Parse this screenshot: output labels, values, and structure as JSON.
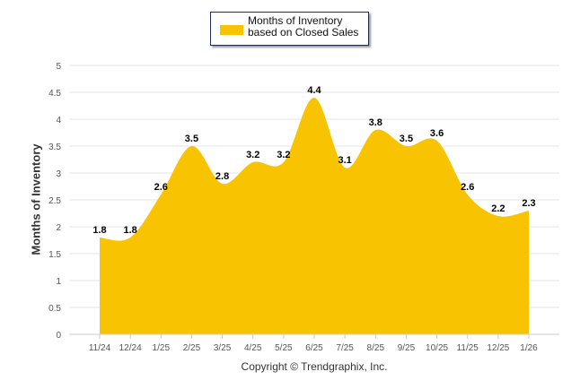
{
  "chart_data": {
    "type": "area",
    "title": "",
    "legend": {
      "label": "Months of Inventory based on Closed Sales",
      "position": "top-center"
    },
    "xlabel": "",
    "ylabel": "Months of Inventory",
    "ylim": [
      0,
      5
    ],
    "yticks": [
      "0",
      "0.5",
      "1",
      "1.5",
      "2",
      "2.5",
      "3",
      "3.5",
      "4",
      "4.5",
      "5"
    ],
    "categories": [
      "11/24",
      "12/24",
      "1/25",
      "2/25",
      "3/25",
      "4/25",
      "5/25",
      "6/25",
      "7/25",
      "8/25",
      "9/25",
      "10/25",
      "11/25",
      "12/25",
      "1/26"
    ],
    "series": [
      {
        "name": "Months of Inventory based on Closed Sales",
        "values": [
          1.8,
          1.8,
          2.6,
          3.5,
          2.8,
          3.2,
          3.2,
          4.4,
          3.1,
          3.8,
          3.5,
          3.6,
          2.6,
          2.2,
          2.3
        ],
        "color": "#F8C300"
      }
    ],
    "grid": true
  },
  "footer": {
    "copyright": "Copyright © Trendgraphix, Inc."
  }
}
